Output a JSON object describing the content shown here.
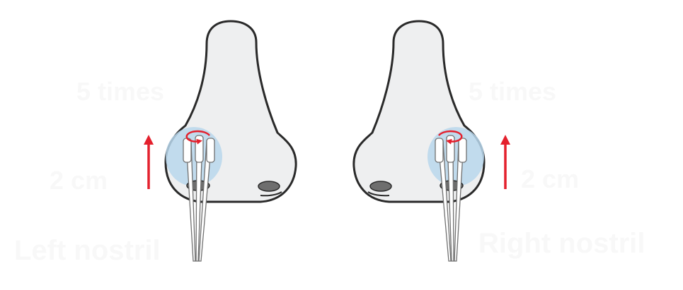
{
  "labels": {
    "left_times": "5 times",
    "right_times": "5 times",
    "left_distance": "2 cm",
    "right_distance": "2 cm",
    "left_nostril": "Left nostril",
    "right_nostril": "Right nostril"
  },
  "colors": {
    "nose_fill": "#eeeff0",
    "outline": "#2a2a2a",
    "nostril": "#6e6e6e",
    "swab_zone": "#b9d7ec",
    "arrow": "#e4202d"
  }
}
